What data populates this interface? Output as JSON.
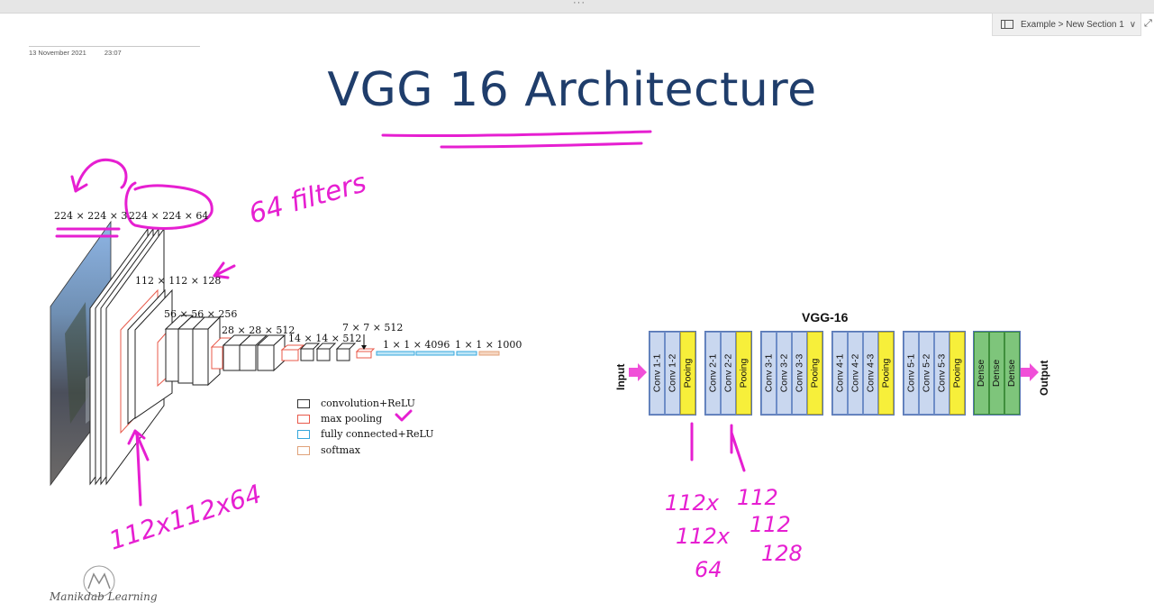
{
  "breadcrumb": {
    "text": "Example > New Section 1"
  },
  "page": {
    "date": "13 November 2021",
    "time": "23:07",
    "title": "VGG 16 Architecture"
  },
  "figure1": {
    "labels": {
      "input": "224 × 224 × 3",
      "block1": "224 × 224 × 64",
      "block2": "112 × 112 × 128",
      "block3": "56 × 56 × 256",
      "block4": "28 × 28 × 512",
      "block5": "14 × 14 × 512",
      "block6": "7 × 7 × 512",
      "fc1": "1 × 1 × 4096",
      "fc2": "1 × 1 × 1000"
    },
    "legend": [
      {
        "label": "convolution+ReLU",
        "color": "#333333"
      },
      {
        "label": "max pooling",
        "color": "#e8594a"
      },
      {
        "label": "fully connected+ReLU",
        "color": "#35a7dc"
      },
      {
        "label": "softmax",
        "color": "#e0a27a"
      }
    ]
  },
  "figure2": {
    "title": "VGG-16",
    "input": "Input",
    "output": "Output",
    "blocks": [
      {
        "layers": [
          "Conv 1-1",
          "Conv 1-2",
          "Pooing"
        ]
      },
      {
        "layers": [
          "Conv 2-1",
          "Conv 2-2",
          "Pooing"
        ]
      },
      {
        "layers": [
          "Conv 3-1",
          "Conv 3-2",
          "Conv 3-3",
          "Pooing"
        ]
      },
      {
        "layers": [
          "Conv 4-1",
          "Conv 4-2",
          "Conv 4-3",
          "Pooing"
        ]
      },
      {
        "layers": [
          "Conv 5-1",
          "Conv 5-2",
          "Conv 5-3",
          "Pooing"
        ]
      },
      {
        "layers": [
          "Dense",
          "Dense",
          "Dense"
        ]
      }
    ],
    "colors": {
      "conv": "#c9d7ef",
      "pool": "#f7ef3a",
      "dense": "#7ec57b",
      "arrow": "#f04fd8"
    }
  },
  "annotations": {
    "filters": "64 filters",
    "dims": "112x112x64",
    "col1": [
      "112x",
      "112x",
      "64"
    ],
    "col2": [
      "112",
      "112",
      "128"
    ]
  },
  "logo": {
    "text": "Manikdab Learning"
  }
}
